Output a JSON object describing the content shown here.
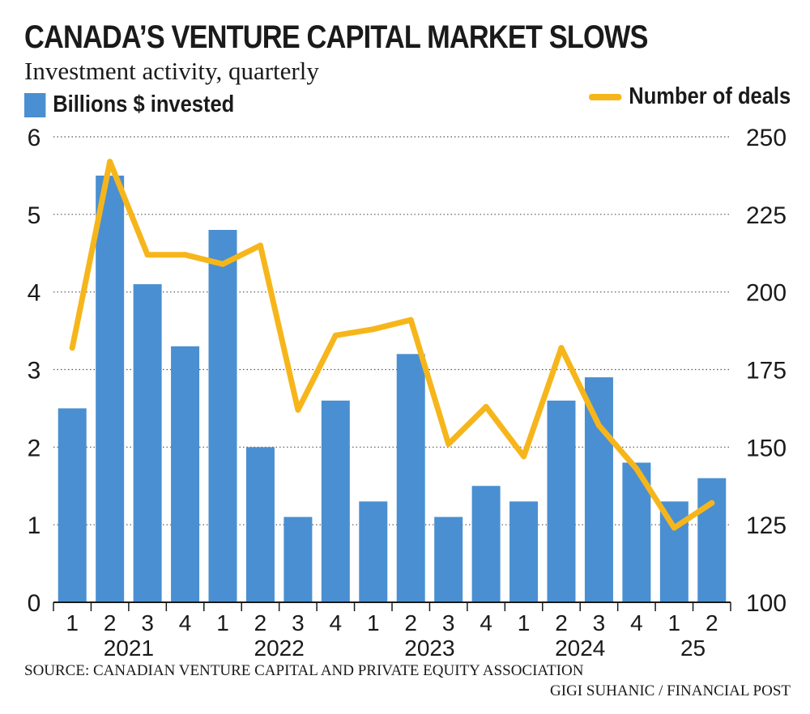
{
  "header": {
    "title": "CANADA’S VENTURE CAPITAL MARKET SLOWS",
    "subtitle": "Investment activity, quarterly"
  },
  "legend": {
    "bar_label": "Billions $ invested",
    "line_label": "Number of deals"
  },
  "footer": {
    "source": "SOURCE: CANADIAN VENTURE CAPITAL AND PRIVATE EQUITY ASSOCIATION",
    "credit": "GIGI SUHANIC / FINANCIAL POST"
  },
  "colors": {
    "bar": "#4a8fd1",
    "line": "#f6b61b",
    "text": "#1a1a1a",
    "grid": "#555555"
  },
  "chart_data": {
    "type": "bar",
    "title": "CANADA’S VENTURE CAPITAL MARKET SLOWS",
    "subtitle": "Investment activity, quarterly",
    "categories": [
      "1",
      "2",
      "3",
      "4",
      "1",
      "2",
      "3",
      "4",
      "1",
      "2",
      "3",
      "4",
      "1",
      "2",
      "3",
      "4",
      "1",
      "2"
    ],
    "year_groups": [
      {
        "label": "2021",
        "start": 0,
        "end": 3
      },
      {
        "label": "2022",
        "start": 4,
        "end": 7
      },
      {
        "label": "2023",
        "start": 8,
        "end": 11
      },
      {
        "label": "2024",
        "start": 12,
        "end": 15
      },
      {
        "label": "25",
        "start": 16,
        "end": 17
      }
    ],
    "series": [
      {
        "name": "Billions $ invested",
        "type": "bar",
        "axis": "left",
        "values": [
          2.5,
          5.5,
          4.1,
          3.3,
          4.8,
          2.0,
          1.1,
          2.6,
          1.3,
          3.2,
          1.1,
          1.5,
          1.3,
          2.6,
          2.9,
          1.8,
          1.3,
          1.6
        ]
      },
      {
        "name": "Number of deals",
        "type": "line",
        "axis": "right",
        "values": [
          182,
          242,
          212,
          212,
          209,
          215,
          162,
          186,
          188,
          191,
          151,
          163,
          147,
          182,
          157,
          143,
          124,
          132
        ]
      }
    ],
    "y_left": {
      "range": [
        0,
        6
      ],
      "ticks": [
        0,
        1,
        2,
        3,
        4,
        5,
        6
      ]
    },
    "y_right": {
      "range": [
        100,
        250
      ],
      "ticks": [
        100,
        125,
        150,
        175,
        200,
        225,
        250
      ]
    },
    "grid": true,
    "legend_placement": "top"
  }
}
